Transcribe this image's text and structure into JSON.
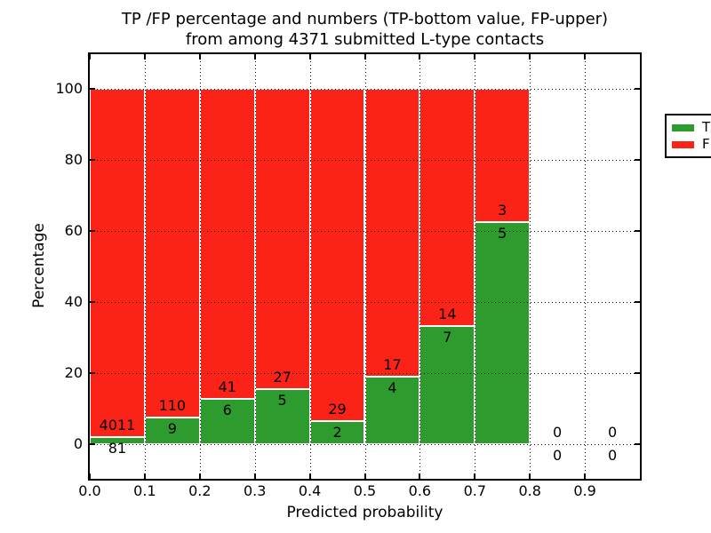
{
  "title": {
    "line1": "TP /FP percentage and numbers (TP-bottom value, FP-upper)",
    "line2": "from among 4371 submitted L-type contacts"
  },
  "axes": {
    "xlabel": "Predicted probability",
    "ylabel": "Percentage",
    "x_tick_labels": [
      "0.0",
      "0.1",
      "0.2",
      "0.3",
      "0.4",
      "0.5",
      "0.6",
      "0.7",
      "0.8",
      "0.9"
    ],
    "y_tick_labels": [
      "0",
      "20",
      "40",
      "60",
      "80",
      "100"
    ]
  },
  "legend": {
    "entries": [
      {
        "label": "TP",
        "color": "#2e9b2e"
      },
      {
        "label": "FP",
        "color": "#fb2318"
      }
    ]
  },
  "colors": {
    "tp": "#2e9b2e",
    "fp": "#fb2318",
    "background": "#ffffff",
    "grid": "#000000"
  },
  "chart_data": {
    "type": "bar",
    "stacked": true,
    "normalized": "each bar totals 100%",
    "title": "TP /FP percentage and numbers (TP-bottom value, FP-upper) from among 4371 submitted L-type contacts",
    "xlabel": "Predicted probability",
    "ylabel": "Percentage",
    "xlim": [
      0.0,
      1.0
    ],
    "ylim": [
      -10,
      110
    ],
    "y_ticks": [
      0,
      20,
      40,
      60,
      80,
      100
    ],
    "x_ticks": [
      0.0,
      0.1,
      0.2,
      0.3,
      0.4,
      0.5,
      0.6,
      0.7,
      0.8,
      0.9
    ],
    "grid": true,
    "grid_style": "dotted, drawn over bars",
    "legend_position": "upper right",
    "total_contacts": 4371,
    "bin_width": 0.1,
    "bins": [
      {
        "range": "0.0-0.1",
        "tp": 81,
        "fp": 4011,
        "tp_percent": 1.98,
        "fp_percent": 98.02
      },
      {
        "range": "0.1-0.2",
        "tp": 9,
        "fp": 110,
        "tp_percent": 7.56,
        "fp_percent": 92.44
      },
      {
        "range": "0.2-0.3",
        "tp": 6,
        "fp": 41,
        "tp_percent": 12.77,
        "fp_percent": 87.23
      },
      {
        "range": "0.3-0.4",
        "tp": 5,
        "fp": 27,
        "tp_percent": 15.63,
        "fp_percent": 84.37
      },
      {
        "range": "0.4-0.5",
        "tp": 2,
        "fp": 29,
        "tp_percent": 6.45,
        "fp_percent": 93.55
      },
      {
        "range": "0.5-0.6",
        "tp": 4,
        "fp": 17,
        "tp_percent": 19.05,
        "fp_percent": 80.95
      },
      {
        "range": "0.6-0.7",
        "tp": 7,
        "fp": 14,
        "tp_percent": 33.33,
        "fp_percent": 66.67
      },
      {
        "range": "0.7-0.8",
        "tp": 5,
        "fp": 3,
        "tp_percent": 62.5,
        "fp_percent": 37.5
      },
      {
        "range": "0.8-0.9",
        "tp": 0,
        "fp": 0,
        "tp_percent": 0,
        "fp_percent": 0
      },
      {
        "range": "0.9-1.0",
        "tp": 0,
        "fp": 0,
        "tp_percent": 0,
        "fp_percent": 0
      }
    ],
    "series": [
      {
        "name": "TP",
        "color": "#2e9b2e",
        "counts": [
          81,
          9,
          6,
          5,
          2,
          4,
          7,
          5,
          0,
          0
        ]
      },
      {
        "name": "FP",
        "color": "#fb2318",
        "counts": [
          4011,
          110,
          41,
          27,
          29,
          17,
          14,
          3,
          0,
          0
        ]
      }
    ]
  }
}
